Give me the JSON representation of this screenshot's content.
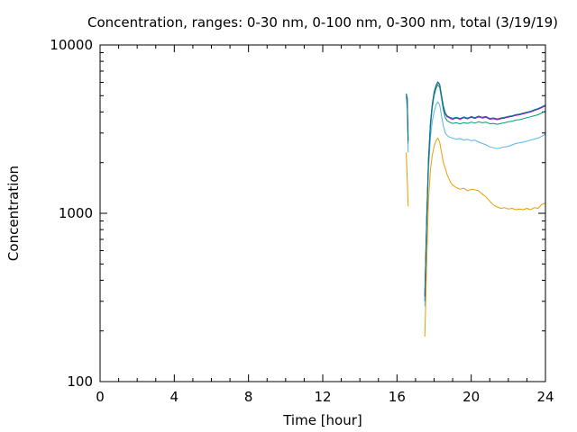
{
  "chart_data": {
    "type": "line",
    "title": "Concentration, ranges: 0-30 nm, 0-100 nm, 0-300 nm, total (3/19/19)",
    "xlabel": "Time [hour]",
    "ylabel": "Concentration",
    "xlim": [
      0,
      24
    ],
    "ylim": [
      100,
      10000
    ],
    "yscale": "log",
    "grid": false,
    "legend": "none",
    "x_major_ticks": [
      0,
      4,
      8,
      12,
      16,
      20,
      24
    ],
    "x_tick_labels": [
      "0",
      "4",
      "8",
      "12",
      "16",
      "20",
      "24"
    ],
    "y_major_ticks": [
      100,
      1000,
      10000
    ],
    "y_tick_labels": [
      "100",
      "1000",
      "10000"
    ],
    "series": [
      {
        "color": "#e69f00",
        "points": [
          [
            16.5,
            2300
          ],
          [
            16.55,
            1600
          ],
          [
            16.6,
            1100
          ],
          [
            17.5,
            185
          ],
          [
            17.6,
            500
          ],
          [
            17.7,
            1200
          ],
          [
            17.8,
            1800
          ],
          [
            17.9,
            2200
          ],
          [
            18.0,
            2500
          ],
          [
            18.1,
            2700
          ],
          [
            18.2,
            2800
          ],
          [
            18.3,
            2650
          ],
          [
            18.4,
            2300
          ],
          [
            18.5,
            2000
          ],
          [
            18.6,
            1850
          ],
          [
            18.7,
            1700
          ],
          [
            18.8,
            1600
          ],
          [
            18.9,
            1520
          ],
          [
            19.0,
            1470
          ],
          [
            19.2,
            1420
          ],
          [
            19.4,
            1390
          ],
          [
            19.6,
            1410
          ],
          [
            19.8,
            1360
          ],
          [
            20.0,
            1390
          ],
          [
            20.2,
            1380
          ],
          [
            20.4,
            1360
          ],
          [
            20.6,
            1300
          ],
          [
            20.8,
            1250
          ],
          [
            21.0,
            1180
          ],
          [
            21.2,
            1120
          ],
          [
            21.4,
            1090
          ],
          [
            21.6,
            1070
          ],
          [
            21.8,
            1080
          ],
          [
            22.0,
            1060
          ],
          [
            22.2,
            1070
          ],
          [
            22.4,
            1050
          ],
          [
            22.6,
            1060
          ],
          [
            22.8,
            1050
          ],
          [
            23.0,
            1070
          ],
          [
            23.2,
            1050
          ],
          [
            23.4,
            1080
          ],
          [
            23.6,
            1070
          ],
          [
            23.8,
            1130
          ],
          [
            24.0,
            1150
          ]
        ]
      },
      {
        "color": "#56b4e9",
        "points": [
          [
            16.5,
            4900
          ],
          [
            16.55,
            4200
          ],
          [
            16.6,
            2300
          ],
          [
            17.5,
            280
          ],
          [
            17.6,
            800
          ],
          [
            17.7,
            1800
          ],
          [
            17.8,
            2800
          ],
          [
            17.9,
            3500
          ],
          [
            18.0,
            4000
          ],
          [
            18.1,
            4400
          ],
          [
            18.2,
            4600
          ],
          [
            18.3,
            4400
          ],
          [
            18.4,
            3800
          ],
          [
            18.5,
            3300
          ],
          [
            18.6,
            3000
          ],
          [
            18.7,
            2900
          ],
          [
            18.8,
            2850
          ],
          [
            18.9,
            2820
          ],
          [
            19.0,
            2800
          ],
          [
            19.2,
            2750
          ],
          [
            19.4,
            2780
          ],
          [
            19.6,
            2720
          ],
          [
            19.8,
            2750
          ],
          [
            20.0,
            2700
          ],
          [
            20.2,
            2720
          ],
          [
            20.4,
            2650
          ],
          [
            20.6,
            2600
          ],
          [
            20.8,
            2550
          ],
          [
            21.0,
            2480
          ],
          [
            21.2,
            2450
          ],
          [
            21.4,
            2420
          ],
          [
            21.6,
            2450
          ],
          [
            21.8,
            2480
          ],
          [
            22.0,
            2500
          ],
          [
            22.2,
            2550
          ],
          [
            22.4,
            2600
          ],
          [
            22.6,
            2620
          ],
          [
            22.8,
            2650
          ],
          [
            23.0,
            2680
          ],
          [
            23.2,
            2720
          ],
          [
            23.4,
            2760
          ],
          [
            23.6,
            2800
          ],
          [
            23.8,
            2870
          ],
          [
            24.0,
            2950
          ]
        ]
      },
      {
        "color": "#009e73",
        "points": [
          [
            16.5,
            5000
          ],
          [
            16.55,
            4600
          ],
          [
            16.6,
            2600
          ],
          [
            17.5,
            300
          ],
          [
            17.6,
            900
          ],
          [
            17.7,
            2000
          ],
          [
            17.8,
            3200
          ],
          [
            17.9,
            4200
          ],
          [
            18.0,
            5000
          ],
          [
            18.1,
            5500
          ],
          [
            18.2,
            5800
          ],
          [
            18.3,
            5600
          ],
          [
            18.4,
            4800
          ],
          [
            18.5,
            4100
          ],
          [
            18.6,
            3700
          ],
          [
            18.7,
            3550
          ],
          [
            18.8,
            3500
          ],
          [
            18.9,
            3450
          ],
          [
            19.0,
            3420
          ],
          [
            19.2,
            3450
          ],
          [
            19.4,
            3400
          ],
          [
            19.6,
            3460
          ],
          [
            19.8,
            3420
          ],
          [
            20.0,
            3480
          ],
          [
            20.2,
            3440
          ],
          [
            20.4,
            3500
          ],
          [
            20.6,
            3450
          ],
          [
            20.8,
            3480
          ],
          [
            21.0,
            3400
          ],
          [
            21.2,
            3420
          ],
          [
            21.4,
            3380
          ],
          [
            21.6,
            3420
          ],
          [
            21.8,
            3450
          ],
          [
            22.0,
            3500
          ],
          [
            22.2,
            3520
          ],
          [
            22.4,
            3580
          ],
          [
            22.6,
            3600
          ],
          [
            22.8,
            3650
          ],
          [
            23.0,
            3700
          ],
          [
            23.2,
            3750
          ],
          [
            23.4,
            3800
          ],
          [
            23.6,
            3850
          ],
          [
            23.8,
            3950
          ],
          [
            24.0,
            4050
          ]
        ]
      },
      {
        "color": "#9400d3",
        "points": [
          [
            16.5,
            5100
          ],
          [
            16.55,
            4800
          ],
          [
            16.6,
            2700
          ],
          [
            17.5,
            320
          ],
          [
            17.6,
            950
          ],
          [
            17.7,
            2100
          ],
          [
            17.8,
            3400
          ],
          [
            17.9,
            4400
          ],
          [
            18.0,
            5200
          ],
          [
            18.1,
            5700
          ],
          [
            18.2,
            6000
          ],
          [
            18.3,
            5800
          ],
          [
            18.4,
            5000
          ],
          [
            18.5,
            4300
          ],
          [
            18.6,
            3900
          ],
          [
            18.7,
            3750
          ],
          [
            18.8,
            3700
          ],
          [
            18.9,
            3650
          ],
          [
            19.0,
            3620
          ],
          [
            19.2,
            3680
          ],
          [
            19.4,
            3620
          ],
          [
            19.6,
            3700
          ],
          [
            19.8,
            3640
          ],
          [
            20.0,
            3720
          ],
          [
            20.2,
            3660
          ],
          [
            20.4,
            3740
          ],
          [
            20.6,
            3680
          ],
          [
            20.8,
            3720
          ],
          [
            21.0,
            3620
          ],
          [
            21.2,
            3650
          ],
          [
            21.4,
            3600
          ],
          [
            21.6,
            3650
          ],
          [
            21.8,
            3680
          ],
          [
            22.0,
            3730
          ],
          [
            22.2,
            3760
          ],
          [
            22.4,
            3820
          ],
          [
            22.6,
            3850
          ],
          [
            22.8,
            3900
          ],
          [
            23.0,
            3950
          ],
          [
            23.2,
            4000
          ],
          [
            23.4,
            4080
          ],
          [
            23.6,
            4150
          ],
          [
            23.8,
            4250
          ],
          [
            24.0,
            4350
          ]
        ]
      },
      {
        "color": "#008080",
        "points": [
          [
            16.5,
            5150
          ],
          [
            16.55,
            4850
          ],
          [
            16.6,
            2750
          ],
          [
            17.5,
            330
          ],
          [
            17.6,
            960
          ],
          [
            17.7,
            2150
          ],
          [
            17.8,
            3450
          ],
          [
            17.9,
            4450
          ],
          [
            18.0,
            5250
          ],
          [
            18.1,
            5750
          ],
          [
            18.2,
            6050
          ],
          [
            18.3,
            5850
          ],
          [
            18.4,
            5050
          ],
          [
            18.5,
            4350
          ],
          [
            18.6,
            3950
          ],
          [
            18.7,
            3800
          ],
          [
            18.8,
            3740
          ],
          [
            18.9,
            3700
          ],
          [
            19.0,
            3670
          ],
          [
            19.2,
            3720
          ],
          [
            19.4,
            3660
          ],
          [
            19.6,
            3740
          ],
          [
            19.8,
            3680
          ],
          [
            20.0,
            3760
          ],
          [
            20.2,
            3700
          ],
          [
            20.4,
            3780
          ],
          [
            20.6,
            3720
          ],
          [
            20.8,
            3760
          ],
          [
            21.0,
            3660
          ],
          [
            21.2,
            3690
          ],
          [
            21.4,
            3640
          ],
          [
            21.6,
            3690
          ],
          [
            21.8,
            3720
          ],
          [
            22.0,
            3770
          ],
          [
            22.2,
            3800
          ],
          [
            22.4,
            3860
          ],
          [
            22.6,
            3890
          ],
          [
            22.8,
            3940
          ],
          [
            23.0,
            3990
          ],
          [
            23.2,
            4040
          ],
          [
            23.4,
            4120
          ],
          [
            23.6,
            4190
          ],
          [
            23.8,
            4290
          ],
          [
            24.0,
            4400
          ]
        ]
      }
    ]
  }
}
